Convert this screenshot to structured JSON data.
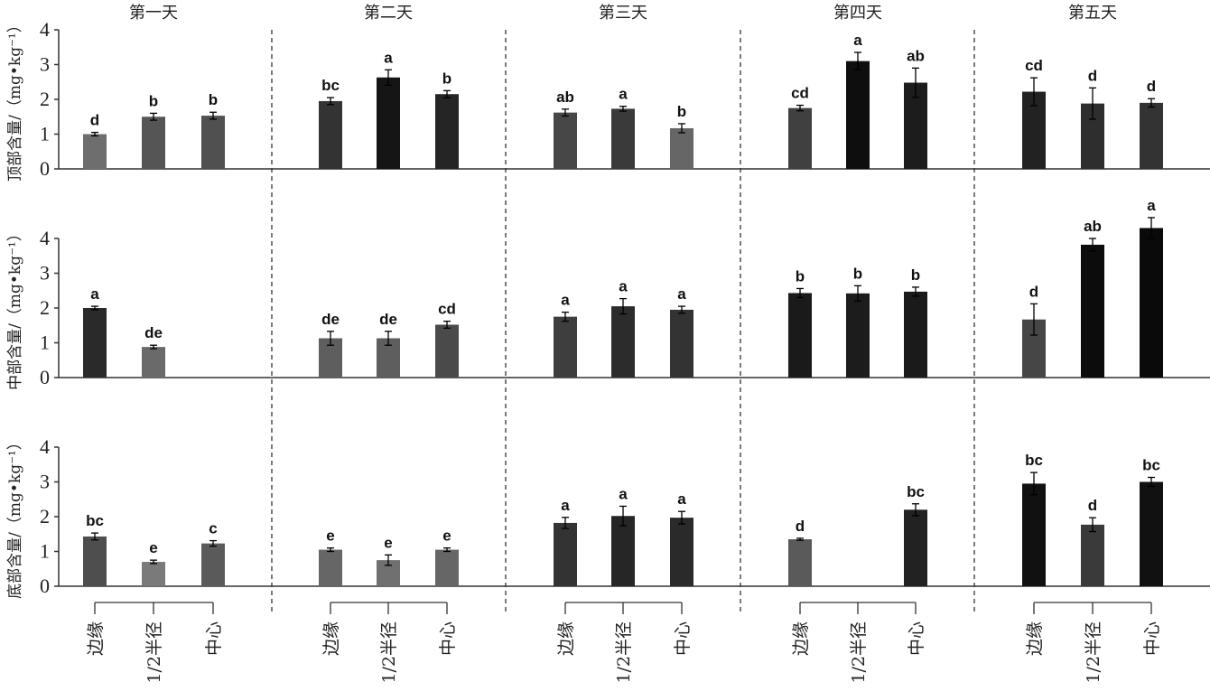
{
  "chart_data": {
    "type": "bar",
    "days": [
      "第一天",
      "第二天",
      "第三天",
      "第四天",
      "第五天"
    ],
    "categories": [
      "边缘",
      "1/2半径",
      "中心"
    ],
    "ylim": [
      0,
      4
    ],
    "yticks": [
      "0",
      "1",
      "2",
      "3",
      "4"
    ],
    "panels": [
      {
        "ylabel": "顶部含量/（mg•kg⁻¹）",
        "values": [
          [
            1.0,
            1.5,
            1.53
          ],
          [
            1.95,
            2.63,
            2.15
          ],
          [
            1.62,
            1.73,
            1.17
          ],
          [
            1.75,
            3.1,
            2.48
          ],
          [
            2.22,
            1.88,
            1.9
          ]
        ],
        "errors": [
          [
            0.05,
            0.1,
            0.1
          ],
          [
            0.1,
            0.22,
            0.1
          ],
          [
            0.1,
            0.07,
            0.13
          ],
          [
            0.08,
            0.25,
            0.42
          ],
          [
            0.4,
            0.45,
            0.12
          ]
        ],
        "letters": [
          [
            "d",
            "b",
            "b"
          ],
          [
            "bc",
            "a",
            "b"
          ],
          [
            "ab",
            "a",
            "b"
          ],
          [
            "cd",
            "a",
            "ab"
          ],
          [
            "cd",
            "d",
            "d"
          ]
        ],
        "colors": [
          [
            "#6e6e6e",
            "#555555",
            "#505050"
          ],
          [
            "#333333",
            "#151515",
            "#252525"
          ],
          [
            "#474747",
            "#3a3a3a",
            "#666666"
          ],
          [
            "#404040",
            "#0e0e0e",
            "#1c1c1c"
          ],
          [
            "#222222",
            "#2e2e2e",
            "#333333"
          ]
        ]
      },
      {
        "ylabel": "中部含量/（mg•kg⁻¹）",
        "values": [
          [
            2.0,
            0.88,
            null
          ],
          [
            1.13,
            1.13,
            1.52
          ],
          [
            1.75,
            2.05,
            1.95
          ],
          [
            2.43,
            2.42,
            2.47
          ],
          [
            1.67,
            3.82,
            4.3
          ]
        ],
        "errors": [
          [
            0.05,
            0.05,
            null
          ],
          [
            0.2,
            0.2,
            0.1
          ],
          [
            0.13,
            0.22,
            0.1
          ],
          [
            0.13,
            0.22,
            0.13
          ],
          [
            0.45,
            0.18,
            0.3
          ]
        ],
        "letters": [
          [
            "a",
            "de",
            ""
          ],
          [
            "de",
            "de",
            "cd"
          ],
          [
            "a",
            "a",
            "a"
          ],
          [
            "b",
            "b",
            "b"
          ],
          [
            "d",
            "ab",
            "a"
          ]
        ],
        "colors": [
          [
            "#2a2a2a",
            "#6a6a6a",
            ""
          ],
          [
            "#5e5e5e",
            "#5e5e5e",
            "#4a4a4a"
          ],
          [
            "#3e3e3e",
            "#2c2c2c",
            "#333333"
          ],
          [
            "#1a1a1a",
            "#1c1c1c",
            "#1a1a1a"
          ],
          [
            "#464646",
            "#0c0c0c",
            "#0a0a0a"
          ]
        ]
      },
      {
        "ylabel": "底部含量/（mg•kg⁻¹）",
        "values": [
          [
            1.43,
            0.7,
            1.23
          ],
          [
            1.05,
            0.75,
            1.05
          ],
          [
            1.82,
            2.02,
            1.97
          ],
          [
            1.35,
            null,
            2.2
          ],
          [
            2.95,
            1.77,
            3.0
          ]
        ],
        "errors": [
          [
            0.1,
            0.05,
            0.08
          ],
          [
            0.05,
            0.15,
            0.05
          ],
          [
            0.16,
            0.28,
            0.18
          ],
          [
            0.03,
            null,
            0.17
          ],
          [
            0.32,
            0.2,
            0.13
          ]
        ],
        "letters": [
          [
            "bc",
            "e",
            "c"
          ],
          [
            "e",
            "e",
            "e"
          ],
          [
            "a",
            "a",
            "a"
          ],
          [
            "d",
            "",
            "bc"
          ],
          [
            "bc",
            "d",
            "bc"
          ]
        ],
        "colors": [
          [
            "#4e4e4e",
            "#7a7a7a",
            "#5a5a5a"
          ],
          [
            "#666666",
            "#707070",
            "#666666"
          ],
          [
            "#333333",
            "#262626",
            "#2a2a2a"
          ],
          [
            "#5a5a5a",
            "",
            "#222222"
          ],
          [
            "#111111",
            "#3a3a3a",
            "#111111"
          ]
        ]
      }
    ]
  }
}
